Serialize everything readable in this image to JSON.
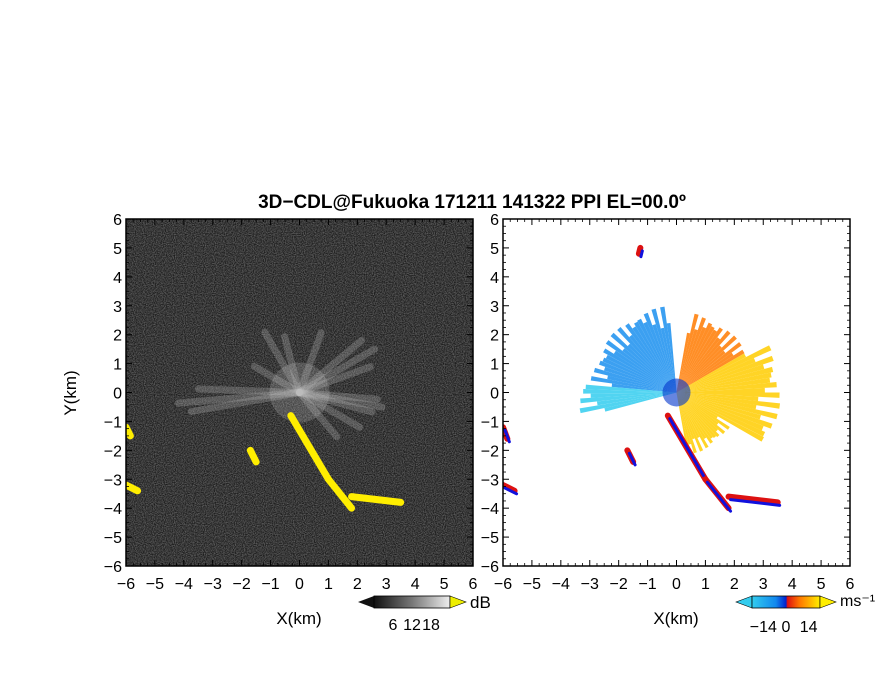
{
  "title": "3D−CDL@Fukuoka 171211 141322 PPI EL=00.0º",
  "chart_data": [
    {
      "type": "heatmap",
      "panel": "left",
      "description": "Reflectivity-like signal intensity PPI (grayscale, yellow highlights)",
      "xlabel": "X(km)",
      "ylabel": "Y(km)",
      "xlim": [
        -6,
        6
      ],
      "ylim": [
        -6,
        6
      ],
      "xticks": [
        "−6",
        "−5",
        "−4",
        "−3",
        "−2",
        "−1",
        "0",
        "1",
        "2",
        "3",
        "4",
        "5",
        "6"
      ],
      "yticks": [
        "6",
        "5",
        "4",
        "3",
        "2",
        "1",
        "0",
        "−1",
        "−2",
        "−3",
        "−4",
        "−5",
        "−6"
      ],
      "colorbar": {
        "unit": "dB",
        "ticks": [
          "6",
          "12",
          "18"
        ],
        "range": [
          0,
          24
        ]
      },
      "colors": {
        "background": "#1c1c1c",
        "highlight": "#ffee00"
      },
      "rays": [
        {
          "az": 95,
          "len": 2.7
        },
        {
          "az": 100,
          "len": 2.9
        },
        {
          "az": 105,
          "len": 2.6
        },
        {
          "az": 260,
          "len": 3.8
        },
        {
          "az": 265,
          "len": 4.2
        },
        {
          "az": 272,
          "len": 3.5
        },
        {
          "az": 50,
          "len": 2.8
        },
        {
          "az": 60,
          "len": 3.0
        },
        {
          "az": 70,
          "len": 2.6
        },
        {
          "az": 20,
          "len": 2.2
        },
        {
          "az": 120,
          "len": 2.4
        },
        {
          "az": 140,
          "len": 2.0
        },
        {
          "az": 330,
          "len": 2.4
        },
        {
          "az": 345,
          "len": 2.0
        },
        {
          "az": 300,
          "len": 1.8
        }
      ],
      "highlight_segments": [
        {
          "x0": -0.3,
          "y0": -0.8,
          "x1": 1.0,
          "y1": -3.0
        },
        {
          "x0": 1.0,
          "y0": -3.0,
          "x1": 1.8,
          "y1": -4.0
        },
        {
          "x0": 1.8,
          "y0": -3.6,
          "x1": 3.5,
          "y1": -3.8
        },
        {
          "x0": -6.0,
          "y0": -1.2,
          "x1": -5.85,
          "y1": -1.5
        },
        {
          "x0": -6.0,
          "y0": -3.2,
          "x1": -5.6,
          "y1": -3.4
        },
        {
          "x0": -1.7,
          "y0": -2.0,
          "x1": -1.5,
          "y1": -2.4
        }
      ]
    },
    {
      "type": "heatmap",
      "panel": "right",
      "description": "Doppler velocity PPI",
      "xlabel": "X(km)",
      "ylabel": "",
      "xlim": [
        -6,
        6
      ],
      "ylim": [
        -6,
        6
      ],
      "xticks": [
        "−6",
        "−5",
        "−4",
        "−3",
        "−2",
        "−1",
        "0",
        "1",
        "2",
        "3",
        "4",
        "5",
        "6"
      ],
      "yticks": [
        "6",
        "5",
        "4",
        "3",
        "2",
        "1",
        "0",
        "−1",
        "−2",
        "−3",
        "−4",
        "−5",
        "−6"
      ],
      "colorbar": {
        "unit": "ms⁻¹",
        "ticks": [
          "−14",
          "0",
          "14"
        ],
        "range": [
          -21,
          21
        ]
      },
      "colors": {
        "negative_far": "#33ccee",
        "negative_near": "#0044dd",
        "positive_near": "#dd1111",
        "positive_mid": "#ff8800",
        "positive_far": "#ffdd00"
      },
      "sectors": [
        {
          "az_from": 275,
          "az_to": 355,
          "max_range": 3.0,
          "velocity": -10
        },
        {
          "az_from": 255,
          "az_to": 275,
          "max_range": 3.4,
          "velocity": -12
        },
        {
          "az_from": 10,
          "az_to": 60,
          "max_range": 2.8,
          "velocity": 6
        },
        {
          "az_from": 60,
          "az_to": 120,
          "max_range": 3.6,
          "velocity": 10
        },
        {
          "az_from": 120,
          "az_to": 170,
          "max_range": 2.2,
          "velocity": 8
        }
      ],
      "edge_segments": [
        {
          "x0": -0.3,
          "y0": -0.8,
          "x1": 1.0,
          "y1": -3.0
        },
        {
          "x0": 1.0,
          "y0": -3.0,
          "x1": 1.8,
          "y1": -4.0
        },
        {
          "x0": 1.8,
          "y0": -3.6,
          "x1": 3.5,
          "y1": -3.8
        },
        {
          "x0": -6.0,
          "y0": -1.2,
          "x1": -5.85,
          "y1": -1.6
        },
        {
          "x0": -6.0,
          "y0": -3.2,
          "x1": -5.6,
          "y1": -3.4
        },
        {
          "x0": -1.7,
          "y0": -2.0,
          "x1": -1.5,
          "y1": -2.4
        },
        {
          "x0": -1.3,
          "y0": 4.8,
          "x1": -1.25,
          "y1": 5.0
        }
      ]
    }
  ]
}
